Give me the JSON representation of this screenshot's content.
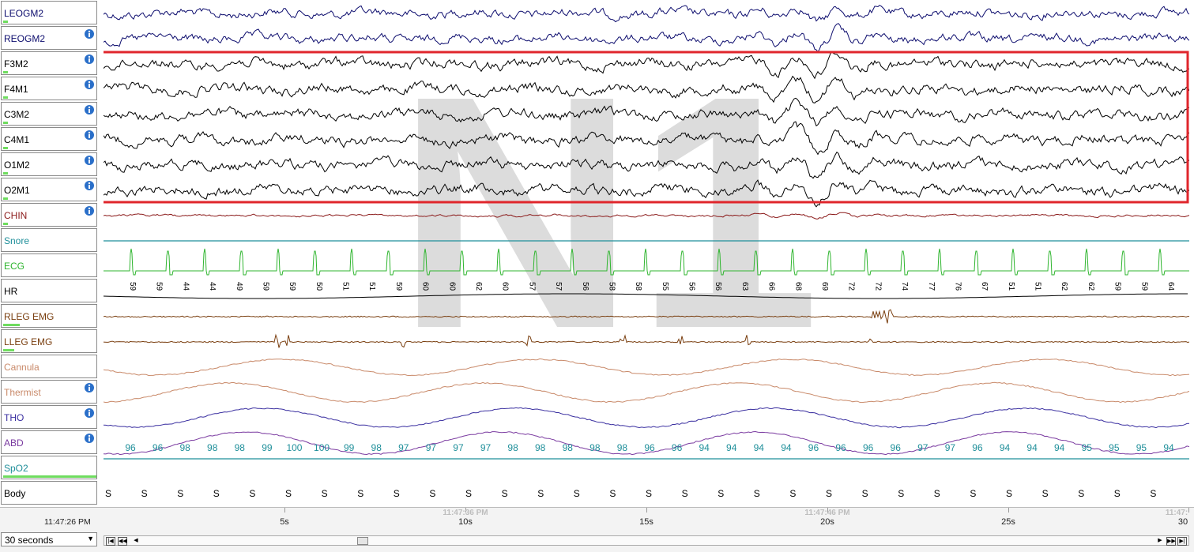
{
  "channels": [
    {
      "name": "LEOGM2",
      "color": "#0d0d6e",
      "info": false,
      "bar": 0.05
    },
    {
      "name": "REOGM2",
      "color": "#0d0d6e",
      "info": true,
      "bar": 0
    },
    {
      "name": "F3M2",
      "color": "#000000",
      "info": true,
      "bar": 0.05
    },
    {
      "name": "F4M1",
      "color": "#000000",
      "info": true,
      "bar": 0.05
    },
    {
      "name": "C3M2",
      "color": "#000000",
      "info": true,
      "bar": 0.05
    },
    {
      "name": "C4M1",
      "color": "#000000",
      "info": true,
      "bar": 0.05
    },
    {
      "name": "O1M2",
      "color": "#000000",
      "info": true,
      "bar": 0.05
    },
    {
      "name": "O2M1",
      "color": "#000000",
      "info": true,
      "bar": 0.05
    },
    {
      "name": "CHIN",
      "color": "#8b1a1a",
      "info": true,
      "bar": 0.05
    },
    {
      "name": "Snore",
      "color": "#1f8f9a",
      "info": false,
      "bar": 0
    },
    {
      "name": "ECG",
      "color": "#2fb52f",
      "info": false,
      "bar": 0
    },
    {
      "name": "HR",
      "color": "#000000",
      "info": false,
      "bar": 0
    },
    {
      "name": "RLEG EMG",
      "color": "#7a3f10",
      "info": false,
      "bar": 0.18
    },
    {
      "name": "LLEG EMG",
      "color": "#7a3f10",
      "info": false,
      "bar": 0.12
    },
    {
      "name": "Cannula",
      "color": "#c98a6a",
      "info": false,
      "bar": 0
    },
    {
      "name": "Thermist",
      "color": "#c98a6a",
      "info": true,
      "bar": 0
    },
    {
      "name": "THO",
      "color": "#3a2fa0",
      "info": true,
      "bar": 0
    },
    {
      "name": "ABD",
      "color": "#7a3aa0",
      "info": true,
      "bar": 0
    },
    {
      "name": "SpO2",
      "color": "#1f8f9a",
      "info": false,
      "bar": 1.0
    },
    {
      "name": "Body",
      "color": "#000000",
      "info": false,
      "bar": 0
    }
  ],
  "stage_label": "N1",
  "hr_values": [
    "59",
    "59",
    "44",
    "44",
    "49",
    "59",
    "59",
    "50",
    "51",
    "51",
    "59",
    "60",
    "60",
    "62",
    "60",
    "57",
    "57",
    "56",
    "58",
    "58",
    "55",
    "56",
    "56",
    "63",
    "66",
    "68",
    "69",
    "72",
    "72",
    "74",
    "77",
    "76",
    "67",
    "51",
    "51",
    "62",
    "62",
    "59",
    "59",
    "64"
  ],
  "spo2_values": [
    "96",
    "96",
    "98",
    "98",
    "98",
    "99",
    "100",
    "100",
    "99",
    "98",
    "97",
    "97",
    "97",
    "97",
    "98",
    "98",
    "98",
    "98",
    "98",
    "96",
    "96",
    "94",
    "94",
    "94",
    "94",
    "96",
    "96",
    "96",
    "96",
    "97",
    "97",
    "96",
    "94",
    "94",
    "94",
    "95",
    "95",
    "95",
    "94"
  ],
  "body_value": "S",
  "clock_start": "11:47:26 PM",
  "epoch_label": "30 seconds",
  "time_ticks": [
    {
      "label": "5s",
      "sec": 5
    },
    {
      "label": "10s",
      "sec": 10
    },
    {
      "label": "15s",
      "sec": 15
    },
    {
      "label": "20s",
      "sec": 20
    },
    {
      "label": "25s",
      "sec": 25
    },
    {
      "label": "30",
      "sec": 30
    }
  ],
  "clock_ticks": [
    {
      "label": "11:47:36 PM",
      "sec": 10
    },
    {
      "label": "11:47:46 PM",
      "sec": 20
    },
    {
      "label": "11:47:",
      "sec": 30
    }
  ],
  "nav_buttons": [
    "first",
    "prev",
    "next",
    "last"
  ],
  "colors": {
    "selection": "#e0262c",
    "stage_watermark": "#dcdcdc",
    "spo2_bar": "#6fdc5f"
  }
}
